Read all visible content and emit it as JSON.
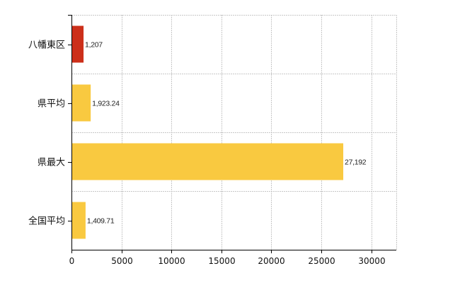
{
  "chart_data": {
    "type": "bar",
    "orientation": "horizontal",
    "categories": [
      "八幡東区",
      "県平均",
      "県最大",
      "全国平均"
    ],
    "values": [
      1207,
      1923.24,
      27192,
      1409.71
    ],
    "value_labels": [
      "1,207",
      "1,923.24",
      "27,192",
      "1,409.71"
    ],
    "bar_colors": [
      "#cc2f1a",
      "#f9c940",
      "#f9c940",
      "#f9c940"
    ],
    "xlim": [
      0,
      32500
    ],
    "x_ticks": [
      0,
      5000,
      10000,
      15000,
      20000,
      25000,
      30000
    ],
    "x_tick_labels": [
      "0",
      "5000",
      "10000",
      "15000",
      "20000",
      "25000",
      "30000"
    ],
    "grid": true,
    "title": "",
    "xlabel": "",
    "ylabel": ""
  }
}
